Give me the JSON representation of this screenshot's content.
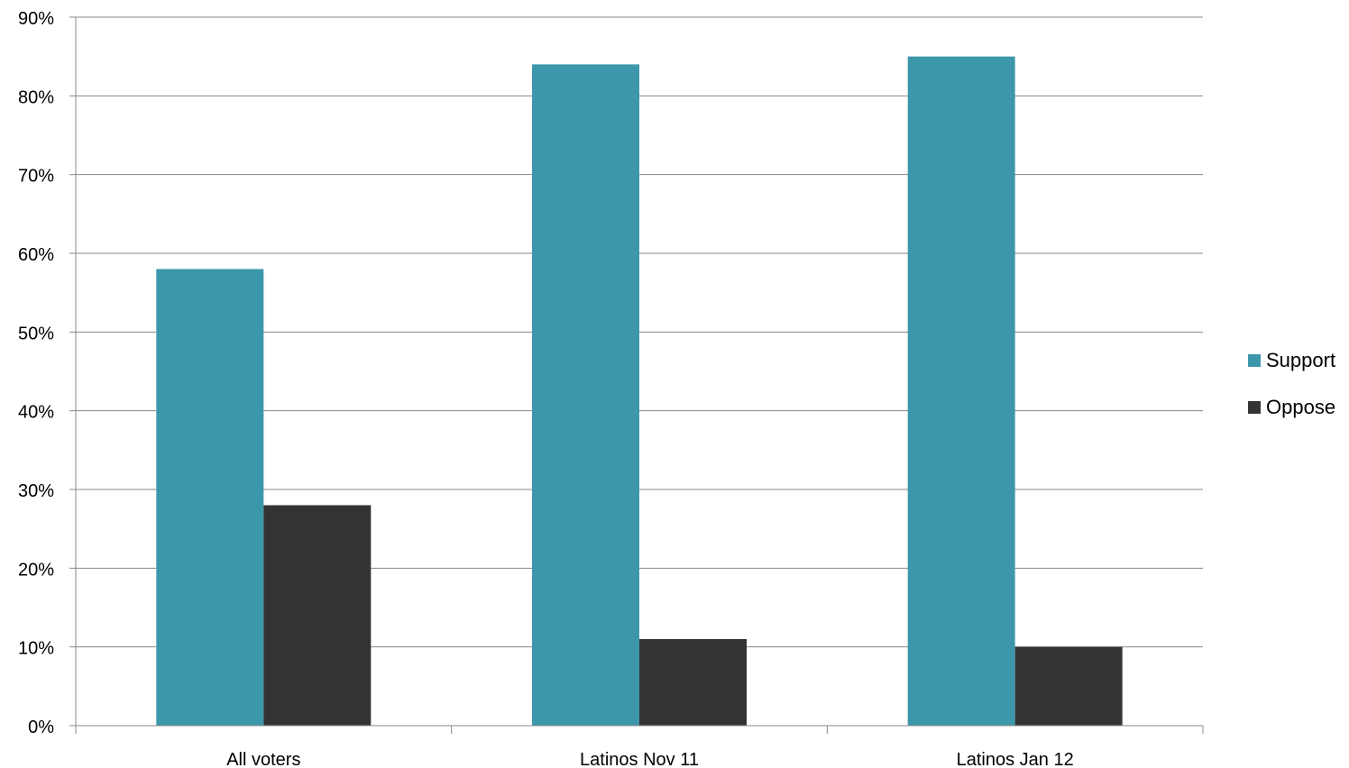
{
  "chart_data": {
    "type": "bar",
    "categories": [
      "All voters",
      "Latinos Nov 11",
      "Latinos Jan 12"
    ],
    "series": [
      {
        "name": "Support",
        "color": "#3d97ab",
        "values": [
          58,
          84,
          85
        ]
      },
      {
        "name": "Oppose",
        "color": "#333333",
        "values": [
          28,
          11,
          10
        ]
      }
    ],
    "ylim": [
      0,
      90
    ],
    "yticks": [
      0,
      10,
      20,
      30,
      40,
      50,
      60,
      70,
      80,
      90
    ],
    "ytick_labels": [
      "0%",
      "10%",
      "20%",
      "30%",
      "40%",
      "50%",
      "60%",
      "70%",
      "80%",
      "90%"
    ],
    "grid": true,
    "legend_position": "right",
    "gridline_color": "#888888"
  }
}
